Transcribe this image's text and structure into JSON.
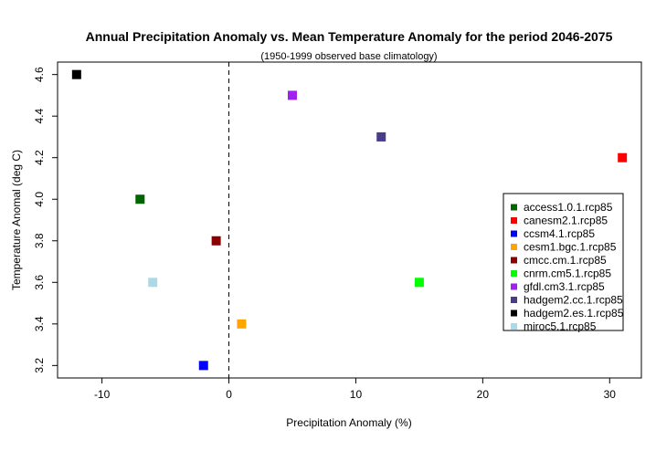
{
  "chart_data": {
    "type": "scatter",
    "title": "Annual Precipitation Anomaly vs. Mean Temperature Anomaly for the period 2046-2075",
    "subtitle": "(1950-1999 observed base climatology)",
    "xlabel": "Precipitation Anomaly (%)",
    "ylabel": "Temperature Anomal (deg C)",
    "xlim": [
      -13.5,
      32.5
    ],
    "ylim": [
      3.14,
      4.66
    ],
    "xticks": [
      -10,
      0,
      10,
      20,
      30
    ],
    "yticks": [
      3.2,
      3.4,
      3.6,
      3.8,
      4.0,
      4.2,
      4.4,
      4.6
    ],
    "xtick_labels": [
      "-10",
      "0",
      "10",
      "20",
      "30"
    ],
    "ytick_labels": [
      "3.2",
      "3.4",
      "3.6",
      "3.8",
      "4.0",
      "4.2",
      "4.4",
      "4.6"
    ],
    "reference_line": {
      "x": 0,
      "style": "dashed"
    },
    "grid": false,
    "legend_position": "right",
    "series": [
      {
        "name": "access1.0.1.rcp85",
        "color": "#006400",
        "x": -7,
        "y": 4.0
      },
      {
        "name": "canesm2.1.rcp85",
        "color": "#ff0000",
        "x": 31,
        "y": 4.2
      },
      {
        "name": "ccsm4.1.rcp85",
        "color": "#0000ff",
        "x": -2,
        "y": 3.2
      },
      {
        "name": "cesm1.bgc.1.rcp85",
        "color": "#ffa500",
        "x": 1,
        "y": 3.4
      },
      {
        "name": "cmcc.cm.1.rcp85",
        "color": "#8b0000",
        "x": -1,
        "y": 3.8
      },
      {
        "name": "cnrm.cm5.1.rcp85",
        "color": "#00ff00",
        "x": 15,
        "y": 3.6
      },
      {
        "name": "gfdl.cm3.1.rcp85",
        "color": "#a020f0",
        "x": 5,
        "y": 4.5
      },
      {
        "name": "hadgem2.cc.1.rcp85",
        "color": "#483d8b",
        "x": 12,
        "y": 4.3
      },
      {
        "name": "hadgem2.es.1.rcp85",
        "color": "#000000",
        "x": -12,
        "y": 4.6
      },
      {
        "name": "miroc5.1.rcp85",
        "color": "#add8e6",
        "x": -6,
        "y": 3.6
      }
    ]
  }
}
